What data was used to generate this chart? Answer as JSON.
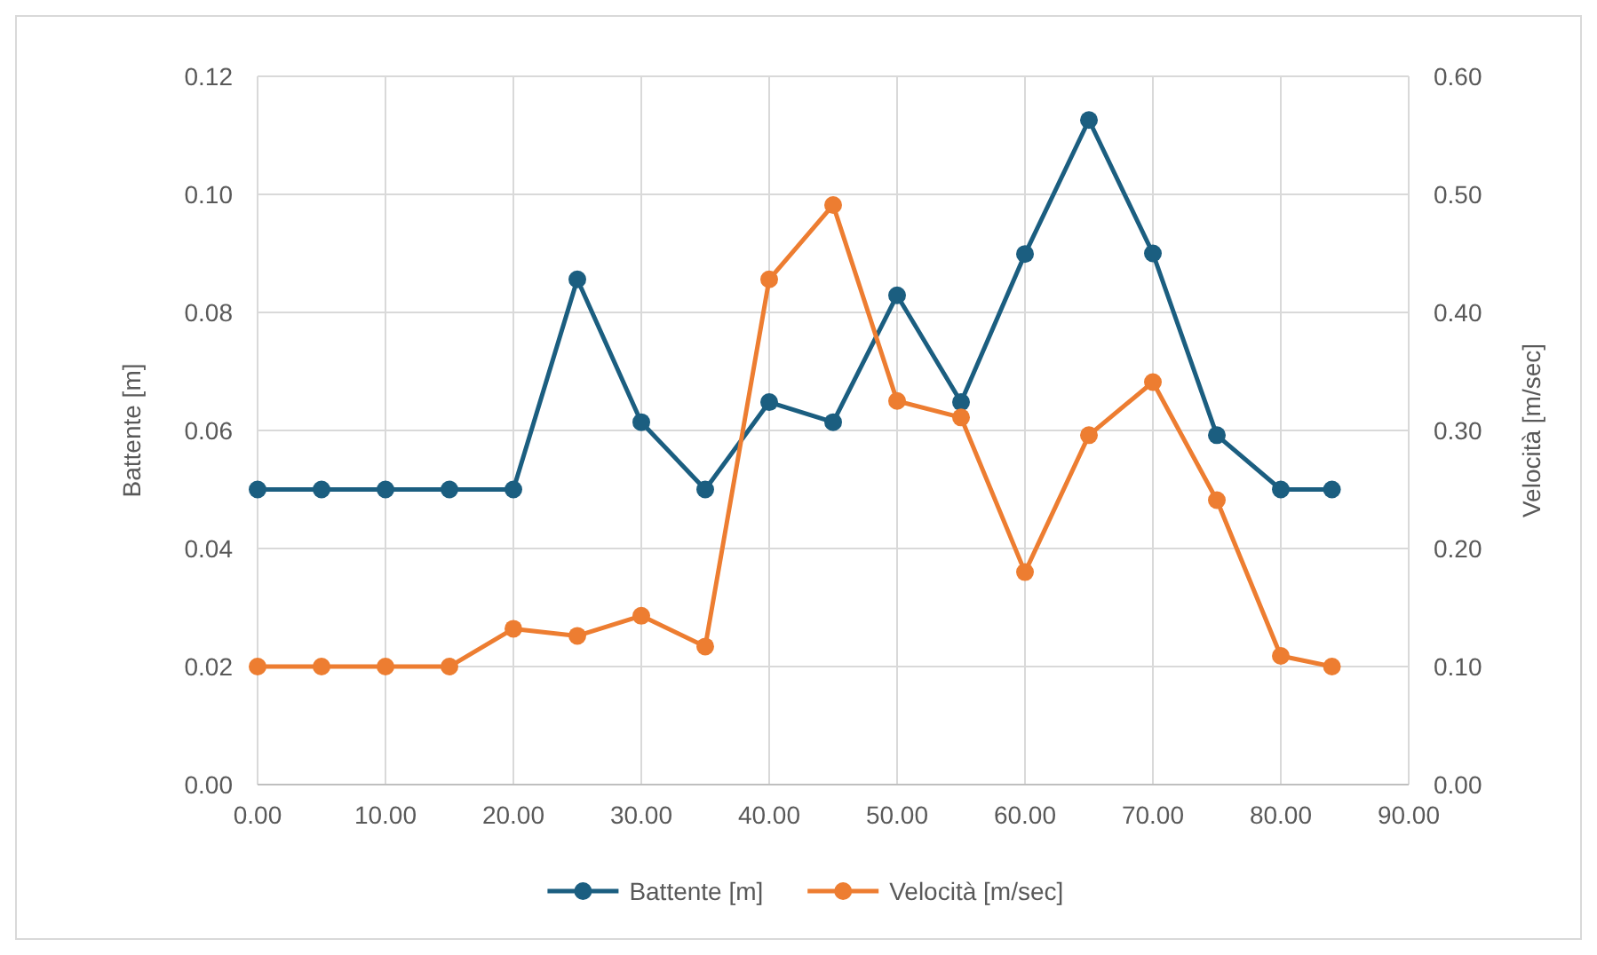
{
  "chart_data": {
    "type": "line",
    "xlabel": null,
    "ylabel": "Battente [m]",
    "y2label": "Velocità [m/sec]",
    "x": [
      0,
      5,
      10,
      15,
      20,
      25,
      30,
      35,
      40,
      45,
      50,
      55,
      60,
      65,
      70,
      75,
      80,
      84
    ],
    "series": [
      {
        "name": "Battente [m]",
        "color": "#1b5e80",
        "values": [
          0.05,
          0.05,
          0.05,
          0.05,
          0.05,
          0.0856,
          0.0614,
          0.05,
          0.0648,
          0.0614,
          0.0829,
          0.0648,
          0.0899,
          0.1126,
          0.09,
          0.0592,
          0.05,
          0.05
        ]
      },
      {
        "name": "Velocità [m/sec]",
        "color": "#ed7d31",
        "axis": "y2",
        "values": [
          0.1,
          0.1,
          0.1,
          0.1,
          0.132,
          0.126,
          0.143,
          0.117,
          0.428,
          0.491,
          0.325,
          0.311,
          0.18,
          0.296,
          0.341,
          0.241,
          0.109,
          0.1
        ]
      }
    ],
    "xlim": [
      0,
      90
    ],
    "xticks": [
      {
        "value": 0,
        "label": "0.00"
      },
      {
        "value": 10,
        "label": "10.00"
      },
      {
        "value": 20,
        "label": "20.00"
      },
      {
        "value": 30,
        "label": "30.00"
      },
      {
        "value": 40,
        "label": "40.00"
      },
      {
        "value": 50,
        "label": "50.00"
      },
      {
        "value": 60,
        "label": "60.00"
      },
      {
        "value": 70,
        "label": "70.00"
      },
      {
        "value": 80,
        "label": "80.00"
      },
      {
        "value": 90,
        "label": "90.00"
      }
    ],
    "ylim": [
      0,
      0.12
    ],
    "yticks": [
      {
        "value": 0,
        "label": "0.00"
      },
      {
        "value": 0.02,
        "label": "0.02"
      },
      {
        "value": 0.04,
        "label": "0.04"
      },
      {
        "value": 0.06,
        "label": "0.06"
      },
      {
        "value": 0.08,
        "label": "0.08"
      },
      {
        "value": 0.1,
        "label": "0.10"
      },
      {
        "value": 0.12,
        "label": "0.12"
      }
    ],
    "y2lim": [
      0,
      0.6
    ],
    "y2ticks": [
      {
        "value": 0,
        "label": "0.00"
      },
      {
        "value": 0.1,
        "label": "0.10"
      },
      {
        "value": 0.2,
        "label": "0.20"
      },
      {
        "value": 0.3,
        "label": "0.30"
      },
      {
        "value": 0.4,
        "label": "0.40"
      },
      {
        "value": 0.5,
        "label": "0.50"
      },
      {
        "value": 0.6,
        "label": "0.60"
      }
    ],
    "grid": true,
    "legend": "bottom",
    "marker": "circle",
    "line_style": "solid"
  }
}
